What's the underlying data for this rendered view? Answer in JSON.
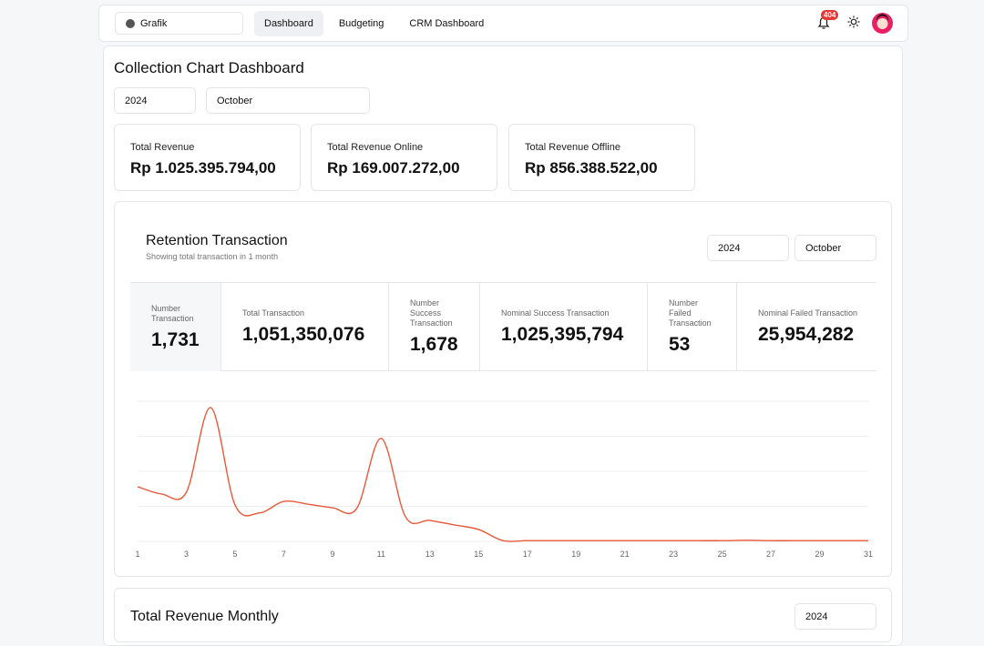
{
  "nav": {
    "brand": "Grafik",
    "links": [
      "Dashboard",
      "Budgeting",
      "CRM Dashboard"
    ],
    "notification_count": "404"
  },
  "header": {
    "title": "Collection Chart Dashboard",
    "year": "2024",
    "month": "October"
  },
  "summary": [
    {
      "label": "Total Revenue",
      "value": "Rp 1.025.395.794,00"
    },
    {
      "label": "Total Revenue Online",
      "value": "Rp 169.007.272,00"
    },
    {
      "label": "Total Revenue Offline",
      "value": "Rp 856.388.522,00"
    }
  ],
  "retention": {
    "title": "Retention Transaction",
    "subtitle": "Showing total transaction in 1 month",
    "year": "2024",
    "month": "October",
    "stats": [
      {
        "label": "Number Transaction",
        "value": "1,731"
      },
      {
        "label": "Total Transaction",
        "value": "1,051,350,076"
      },
      {
        "label": "Number Success Transaction",
        "value": "1,678"
      },
      {
        "label": "Nominal Success Transaction",
        "value": "1,025,395,794"
      },
      {
        "label": "Number Failed Transaction",
        "value": "53"
      },
      {
        "label": "Nominal Failed Transaction",
        "value": "25,954,282"
      }
    ]
  },
  "chart_data": {
    "type": "line",
    "color": "#e8593a",
    "x": [
      1,
      2,
      3,
      4,
      5,
      6,
      7,
      8,
      9,
      10,
      11,
      12,
      13,
      14,
      15,
      16,
      17,
      18,
      19,
      20,
      21,
      22,
      23,
      24,
      25,
      26,
      27,
      28,
      29,
      30,
      31
    ],
    "values": [
      1.56,
      1.35,
      1.4,
      3.82,
      1.04,
      0.81,
      1.14,
      1.06,
      0.96,
      0.94,
      2.94,
      0.7,
      0.6,
      0.47,
      0.34,
      0.02,
      0.02,
      0.02,
      0.02,
      0.02,
      0.02,
      0.02,
      0.02,
      0.02,
      0.02,
      0.03,
      0.02,
      0.02,
      0.02,
      0.02,
      0.02
    ],
    "xlim": [
      1,
      31
    ],
    "xticks": [
      1,
      3,
      5,
      7,
      9,
      11,
      13,
      15,
      17,
      19,
      21,
      23,
      25,
      27,
      29,
      31
    ],
    "ylim": [
      0,
      4
    ],
    "yticks": [
      0,
      1,
      2,
      3,
      4
    ],
    "grid": true,
    "show_ytick_labels": false
  },
  "monthly": {
    "title": "Total Revenue Monthly",
    "year": "2024"
  }
}
